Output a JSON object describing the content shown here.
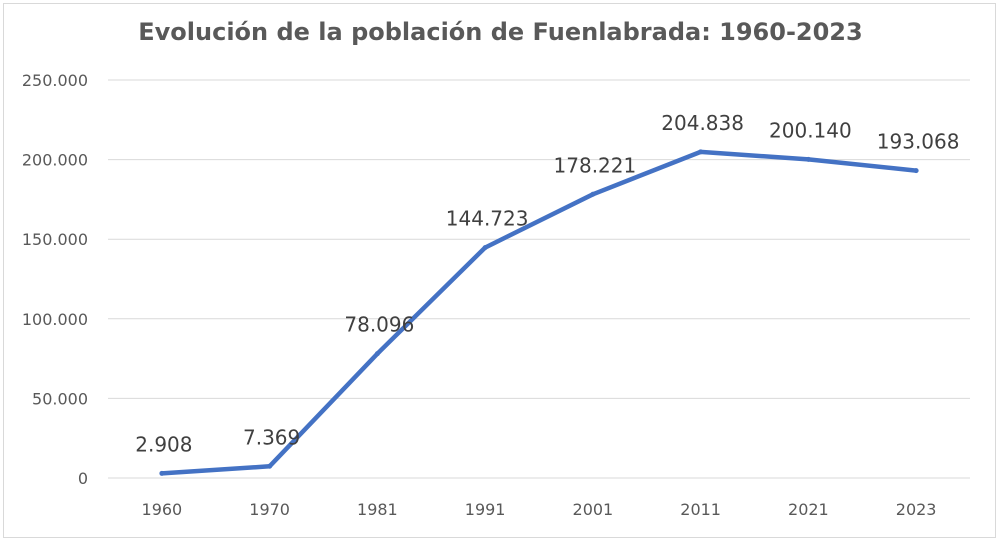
{
  "chart_data": {
    "type": "line",
    "title": "Evolución de la población de Fuenlabrada: 1960-2023",
    "categories": [
      "1960",
      "1970",
      "1981",
      "1991",
      "2001",
      "2011",
      "2021",
      "2023"
    ],
    "series": [
      {
        "values": [
          2908,
          7369,
          78096,
          144723,
          178221,
          204838,
          200140,
          193068
        ],
        "data_labels": [
          "2.908",
          "7.369",
          "78.096",
          "144.723",
          "178.221",
          "204.838",
          "200.140",
          "193.068"
        ]
      }
    ],
    "y_ticks": [
      {
        "value": 0,
        "label": "0"
      },
      {
        "value": 50000,
        "label": "50.000"
      },
      {
        "value": 100000,
        "label": "100.000"
      },
      {
        "value": 150000,
        "label": "150.000"
      },
      {
        "value": 200000,
        "label": "200.000"
      },
      {
        "value": 250000,
        "label": "250.000"
      }
    ],
    "ylim": [
      0,
      250000
    ],
    "grid": true,
    "legend": "none",
    "colors": {
      "line": "#4472c4",
      "grid": "#d9d9d9",
      "text": "#595959",
      "label": "#404040"
    }
  }
}
